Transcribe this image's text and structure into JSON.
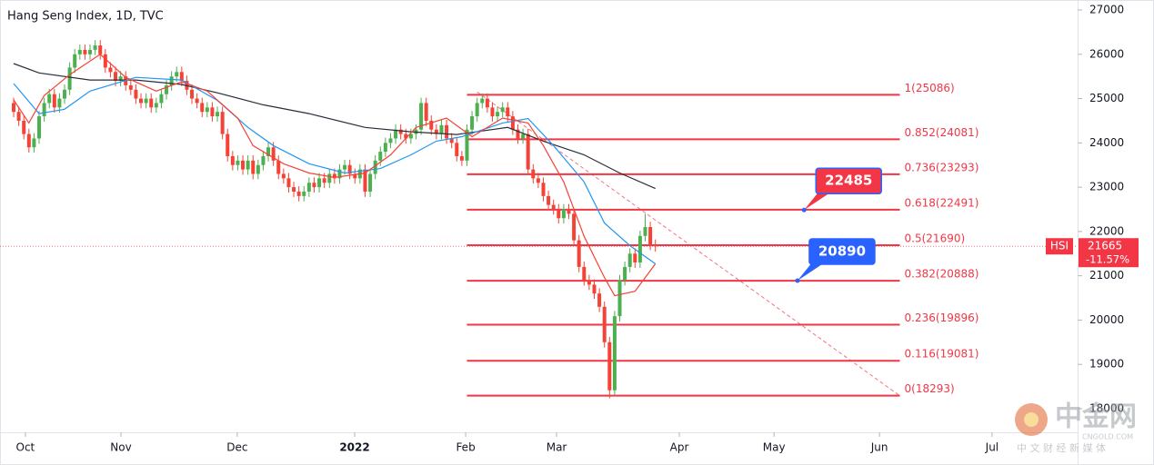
{
  "chart_data": {
    "type": "candlestick",
    "title": "Hang Seng Index, 1D, TVC",
    "xlim": [
      -2.68,
      208.9
    ],
    "ylim": [
      17466,
      27226
    ],
    "xticks": [
      {
        "value": 2.3,
        "label": "Oct"
      },
      {
        "value": 21.07,
        "label": "Nov"
      },
      {
        "value": 43.9,
        "label": "Dec"
      },
      {
        "value": 66.96,
        "label": "2022"
      },
      {
        "value": 88.75,
        "label": "Feb"
      },
      {
        "value": 106.6,
        "label": "Mar"
      },
      {
        "value": 130.7,
        "label": "Apr"
      },
      {
        "value": 149.3,
        "label": "May"
      },
      {
        "value": 170,
        "label": "Jun"
      },
      {
        "value": 192.1,
        "label": "Jul"
      }
    ],
    "yticks": [
      18000,
      19000,
      20000,
      21000,
      22000,
      23000,
      24000,
      25000,
      26000,
      27000
    ],
    "up_color": "#4caf50",
    "down_color": "#f44336",
    "x": [
      0,
      1,
      2,
      3,
      4,
      5,
      6,
      7,
      8,
      9,
      10,
      11,
      12,
      13,
      14,
      15,
      16,
      17,
      18,
      19,
      20,
      21,
      22,
      23,
      24,
      25,
      26,
      27,
      28,
      29,
      30,
      31,
      32,
      33,
      34,
      35,
      36,
      37,
      38,
      39,
      40,
      41,
      42,
      43,
      44,
      45,
      46,
      47,
      48,
      49,
      50,
      51,
      52,
      53,
      54,
      55,
      56,
      57,
      58,
      59,
      60,
      61,
      62,
      63,
      64,
      65,
      66,
      67,
      68,
      69,
      70,
      71,
      72,
      73,
      74,
      75,
      76,
      77,
      78,
      79,
      80,
      81,
      82,
      83,
      84,
      85,
      86,
      87,
      88,
      89,
      90,
      91,
      92,
      93,
      94,
      95,
      96,
      97,
      98,
      99,
      100,
      101,
      102,
      103,
      104,
      105,
      106,
      107,
      108,
      109,
      110,
      111,
      112,
      113,
      114,
      115,
      116,
      117,
      118,
      119,
      120,
      121,
      122,
      123,
      124,
      125,
      126
    ],
    "open": [
      24900,
      24700,
      24500,
      24200,
      23900,
      24100,
      24600,
      24900,
      25100,
      24800,
      25000,
      25200,
      25700,
      26000,
      26100,
      26000,
      26100,
      26200,
      26000,
      25700,
      25600,
      25400,
      25500,
      25300,
      25200,
      25000,
      24900,
      25000,
      24800,
      24900,
      25100,
      25300,
      25500,
      25600,
      25400,
      25200,
      25000,
      24900,
      24700,
      24800,
      24600,
      24700,
      24200,
      23700,
      23500,
      23600,
      23400,
      23600,
      23300,
      23500,
      23700,
      23900,
      23600,
      23300,
      23200,
      23000,
      22900,
      22800,
      22900,
      23100,
      23000,
      23200,
      23100,
      23300,
      23200,
      23400,
      23500,
      23300,
      23200,
      23400,
      22900,
      23300,
      23600,
      23800,
      24000,
      24100,
      24300,
      24200,
      24100,
      24200,
      24300,
      24900,
      24500,
      24300,
      24200,
      24400,
      24100,
      24000,
      23700,
      23600,
      24300,
      24600,
      24900,
      25000,
      24800,
      24600,
      24700,
      24800,
      24600,
      24300,
      24100,
      24200,
      23400,
      23200,
      23100,
      22800,
      22600,
      22500,
      22300,
      22500,
      22400,
      21800,
      21200,
      20900,
      20800,
      20600,
      20300,
      19500,
      18415,
      20087,
      20900,
      21200,
      21500,
      21300,
      21900,
      22100,
      21700
    ],
    "high": [
      25020,
      24820,
      24620,
      24320,
      24220,
      24720,
      25020,
      25220,
      25220,
      25120,
      25320,
      25820,
      26120,
      26220,
      26220,
      26220,
      26320,
      26320,
      26120,
      25820,
      25720,
      25620,
      25620,
      25420,
      25320,
      25120,
      25120,
      25120,
      25020,
      25220,
      25420,
      25620,
      25720,
      25720,
      25520,
      25320,
      25120,
      25020,
      24920,
      24920,
      24820,
      24820,
      24320,
      23820,
      23720,
      23720,
      23720,
      23720,
      23620,
      23820,
      24020,
      24020,
      23720,
      23420,
      23320,
      23120,
      23020,
      23020,
      23220,
      23220,
      23320,
      23320,
      23420,
      23420,
      23520,
      23620,
      23620,
      23420,
      23520,
      23520,
      23420,
      23720,
      23920,
      24120,
      24220,
      24420,
      24420,
      24320,
      24320,
      24420,
      25020,
      25020,
      24620,
      24420,
      24520,
      24520,
      24220,
      24120,
      23820,
      24420,
      24720,
      25020,
      25120,
      25120,
      24920,
      24820,
      24920,
      24920,
      24720,
      24420,
      24320,
      24320,
      23520,
      23320,
      23220,
      22920,
      22720,
      22620,
      22620,
      22620,
      22520,
      21920,
      21320,
      21020,
      20920,
      20720,
      20420,
      19620,
      20207,
      21020,
      21320,
      21620,
      21620,
      22020,
      22400,
      22220,
      21820
    ],
    "low": [
      24580,
      24380,
      24080,
      23780,
      23780,
      23980,
      24480,
      24780,
      24680,
      24680,
      24880,
      25080,
      25580,
      25880,
      25880,
      25880,
      25980,
      25880,
      25580,
      25480,
      25280,
      25280,
      25180,
      25080,
      24880,
      24780,
      24780,
      24680,
      24680,
      24780,
      24980,
      25180,
      25380,
      25280,
      25080,
      24880,
      24780,
      24580,
      24580,
      24480,
      24480,
      24080,
      23580,
      23380,
      23380,
      23280,
      23280,
      23180,
      23180,
      23380,
      23580,
      23480,
      23180,
      23080,
      22880,
      22780,
      22680,
      22680,
      22780,
      22880,
      22880,
      22980,
      22980,
      23080,
      23080,
      23280,
      23180,
      23080,
      23080,
      22780,
      22780,
      23180,
      23480,
      23680,
      23880,
      23980,
      24080,
      23980,
      23980,
      24080,
      24180,
      24380,
      24180,
      24080,
      24080,
      23980,
      23880,
      23580,
      23480,
      23480,
      24180,
      24480,
      24780,
      24680,
      24480,
      24480,
      24580,
      24480,
      24180,
      23980,
      23980,
      23280,
      23080,
      22980,
      22680,
      22480,
      22380,
      22180,
      22180,
      22280,
      21680,
      21080,
      20780,
      20680,
      20480,
      20180,
      19380,
      18235,
      18295,
      19967,
      20780,
      21080,
      21180,
      21180,
      21780,
      21580,
      21545
    ],
    "close": [
      24700,
      24500,
      24200,
      23900,
      24100,
      24600,
      24900,
      25100,
      24800,
      25000,
      25200,
      25700,
      26000,
      26100,
      26000,
      26100,
      26200,
      26000,
      25700,
      25600,
      25400,
      25500,
      25300,
      25200,
      25000,
      24900,
      25000,
      24800,
      24900,
      25100,
      25300,
      25500,
      25600,
      25400,
      25200,
      25000,
      24900,
      24700,
      24800,
      24600,
      24700,
      24200,
      23700,
      23500,
      23600,
      23400,
      23600,
      23300,
      23500,
      23700,
      23900,
      23600,
      23300,
      23200,
      23000,
      22900,
      22800,
      22900,
      23100,
      23000,
      23200,
      23100,
      23300,
      23200,
      23400,
      23500,
      23300,
      23200,
      23400,
      22900,
      23300,
      23600,
      23800,
      24000,
      24100,
      24300,
      24200,
      24100,
      24200,
      24300,
      24900,
      24500,
      24300,
      24200,
      24400,
      24100,
      24000,
      23700,
      23600,
      24300,
      24600,
      24900,
      25000,
      24800,
      24600,
      24700,
      24800,
      24600,
      24300,
      24100,
      24200,
      23400,
      23200,
      23100,
      22800,
      22600,
      22500,
      22300,
      22500,
      22400,
      21800,
      21200,
      20900,
      20800,
      20600,
      20300,
      19500,
      18415,
      20087,
      20900,
      21200,
      21500,
      21300,
      21900,
      22100,
      21700,
      21665
    ],
    "lines": [
      {
        "color": "#2a2e39",
        "x": [
          0,
          5,
          15,
          24,
          33,
          40,
          49,
          58,
          69,
          78,
          87,
          97,
          104,
          112,
          119,
          126
        ],
        "values": [
          25790,
          25580,
          25420,
          25420,
          25320,
          25130,
          24860,
          24660,
          24350,
          24250,
          24190,
          24350,
          24040,
          23730,
          23320,
          22970
        ]
      },
      {
        "color": "#2196f3",
        "x": [
          0,
          5,
          10,
          15,
          24,
          33,
          40,
          46,
          51,
          58,
          65,
          72,
          78,
          83,
          88,
          96,
          101,
          106,
          112,
          116,
          121,
          126
        ],
        "values": [
          25340,
          24660,
          24760,
          25170,
          25480,
          25420,
          24960,
          24350,
          23940,
          23530,
          23320,
          23420,
          23730,
          24040,
          24140,
          24450,
          24550,
          23940,
          23120,
          22190,
          21680,
          21270
        ]
      },
      {
        "color": "#f44336",
        "x": [
          0,
          3,
          6,
          11,
          17,
          22,
          28,
          33,
          38,
          44,
          47,
          53,
          58,
          63,
          69,
          74,
          79,
          85,
          90,
          96,
          101,
          104,
          108,
          112,
          116,
          118,
          122,
          126
        ],
        "values": [
          24970,
          24450,
          25070,
          25540,
          26000,
          25480,
          25170,
          25380,
          25170,
          24560,
          23940,
          23530,
          23320,
          23220,
          23320,
          23730,
          24350,
          24560,
          24140,
          24560,
          24450,
          23940,
          23120,
          21890,
          20960,
          20550,
          20650,
          21270
        ]
      }
    ],
    "fib_color": "#f23645",
    "fib_x": [
      89,
      174
    ],
    "fib_levels": [
      {
        "label": "1(25086)",
        "value": 25086
      },
      {
        "label": "0.852(24081)",
        "value": 24081
      },
      {
        "label": "0.736(23293)",
        "value": 23293
      },
      {
        "label": "0.618(22491)",
        "value": 22491
      },
      {
        "label": "0.5(21690)",
        "value": 21690
      },
      {
        "label": "0.382(20888)",
        "value": 20888
      },
      {
        "label": "0.236(19896)",
        "value": 19896
      },
      {
        "label": "0.116(19081)",
        "value": 19081
      },
      {
        "label": "0(18293)",
        "value": 18293
      }
    ],
    "trendline": {
      "x": [
        91,
        174
      ],
      "values": [
        25150,
        18290
      ]
    },
    "annotations": [
      {
        "value": 22485,
        "x": 155.2,
        "color": "#f23645"
      },
      {
        "value": 20890,
        "x": 153.9,
        "color": "#2962ff"
      }
    ],
    "last": {
      "symbol": "HSI",
      "value": 21665,
      "change": "-11.57%",
      "color": "#f23645"
    },
    "watermark": {
      "brand": "中金网",
      "site": "CNGOLD.COM",
      "slogan": "中 文 财 经 新 媒 体"
    }
  }
}
